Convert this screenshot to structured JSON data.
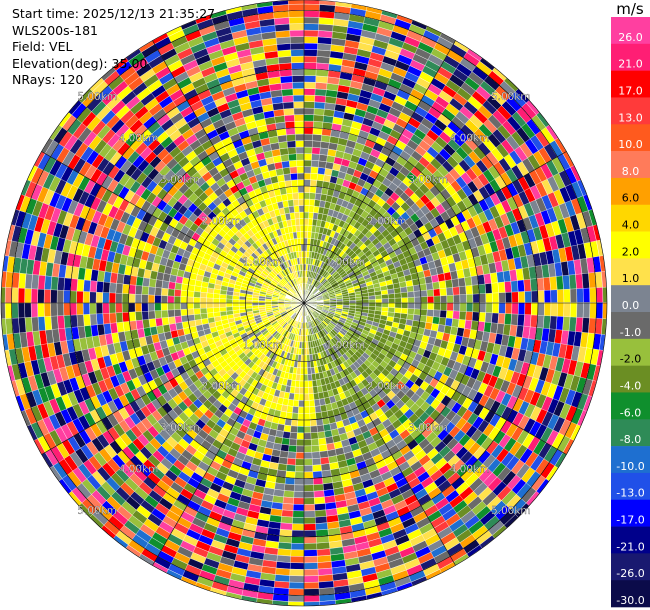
{
  "info": {
    "start_time": "Start time: 2025/12/13 21:35:27",
    "station": "WLS200s-181",
    "field": "Field: VEL",
    "elevation": "Elevation(deg): 35.00",
    "nrays": "NRays: 120"
  },
  "colorbar": {
    "unit": "m/s",
    "bins": [
      {
        "label": "26.0",
        "color": "#ff3fa0"
      },
      {
        "label": "21.0",
        "color": "#ff1e74"
      },
      {
        "label": "17.0",
        "color": "#ff0000"
      },
      {
        "label": "13.0",
        "color": "#ff3a3a"
      },
      {
        "label": "10.0",
        "color": "#ff5a1e"
      },
      {
        "label": "8.0",
        "color": "#ff7b5a"
      },
      {
        "label": "6.0",
        "color": "#ffa000"
      },
      {
        "label": "4.0",
        "color": "#ffd700"
      },
      {
        "label": "2.0",
        "color": "#ffff00"
      },
      {
        "label": "1.0",
        "color": "#ffe14b"
      },
      {
        "label": "0.0",
        "color": "#7c8491"
      },
      {
        "label": "-1.0",
        "color": "#6a6a6a"
      },
      {
        "label": "-2.0",
        "color": "#98c03c"
      },
      {
        "label": "-4.0",
        "color": "#6b8e23"
      },
      {
        "label": "-6.0",
        "color": "#0f8f2d"
      },
      {
        "label": "-8.0",
        "color": "#2e8b57"
      },
      {
        "label": "-10.0",
        "color": "#1e6fd0"
      },
      {
        "label": "-13.0",
        "color": "#2050e8"
      },
      {
        "label": "-17.0",
        "color": "#0000ff"
      },
      {
        "label": "-21.0",
        "color": "#00008b"
      },
      {
        "label": "-26.0",
        "color": "#191970"
      },
      {
        "label": "-30.0",
        "color": "#0b0b4a"
      }
    ]
  },
  "chart_data": {
    "type": "heatmap",
    "projection": "polar PPI",
    "field": "VEL",
    "unit": "m/s",
    "elevation_deg": 35.0,
    "n_rays": 120,
    "value_range": [
      -30.0,
      26.0
    ],
    "range_rings": [
      {
        "label": "1.00km"
      },
      {
        "label": "2.00km"
      },
      {
        "label": "3.00km"
      },
      {
        "label": "4.00km"
      },
      {
        "label": "5.00km"
      }
    ]
  }
}
